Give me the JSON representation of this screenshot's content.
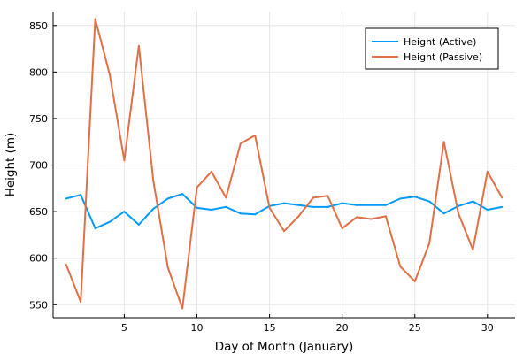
{
  "chart_data": {
    "type": "line",
    "xlabel": "Day of Month (January)",
    "ylabel": "Height (m)",
    "xlim": [
      0.1,
      31.9
    ],
    "ylim": [
      536,
      865
    ],
    "xticks": [
      5,
      10,
      15,
      20,
      25,
      30
    ],
    "yticks": [
      550,
      600,
      650,
      700,
      750,
      800,
      850
    ],
    "grid": true,
    "legend_position": "top-right",
    "x": [
      1,
      2,
      3,
      4,
      5,
      6,
      7,
      8,
      9,
      10,
      11,
      12,
      13,
      14,
      15,
      16,
      17,
      18,
      19,
      20,
      21,
      22,
      23,
      24,
      25,
      26,
      27,
      28,
      29,
      30,
      31
    ],
    "series": [
      {
        "name": "Height (Active)",
        "color": "#009af9",
        "values": [
          664,
          668,
          632,
          639,
          650,
          636,
          653,
          664,
          669,
          654,
          652,
          655,
          648,
          647,
          656,
          659,
          657,
          655,
          655,
          659,
          657,
          657,
          657,
          664,
          666,
          661,
          648,
          656,
          661,
          652,
          655
        ]
      },
      {
        "name": "Height (Passive)",
        "color": "#e26f46",
        "values": [
          593,
          553,
          857,
          797,
          705,
          828,
          683,
          590,
          546,
          676,
          693,
          665,
          723,
          732,
          654,
          629,
          645,
          665,
          667,
          632,
          644,
          642,
          645,
          591,
          575,
          616,
          725,
          648,
          609,
          693,
          665
        ]
      }
    ]
  }
}
